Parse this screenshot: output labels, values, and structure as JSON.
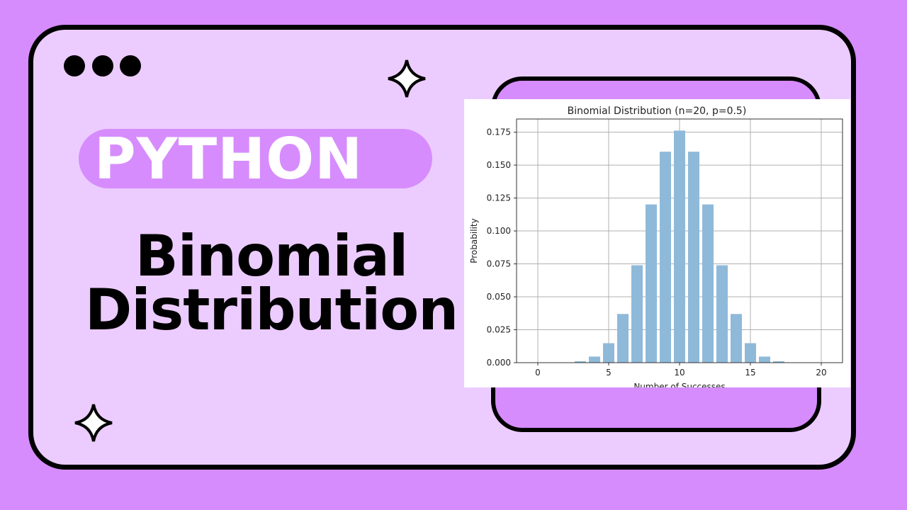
{
  "thumbnail": {
    "badge": "PYTHON",
    "title_line1": "Binomial",
    "title_line2": "Distribution",
    "colors": {
      "background": "#d68cfd",
      "card": "#ecccff",
      "bar": "#8fb9d9"
    }
  },
  "chart_data": {
    "type": "bar",
    "title": "Binomial Distribution (n=20, p=0.5)",
    "xlabel": "Number of Successes",
    "ylabel": "Probability",
    "x": [
      0,
      1,
      2,
      3,
      4,
      5,
      6,
      7,
      8,
      9,
      10,
      11,
      12,
      13,
      14,
      15,
      16,
      17,
      18,
      19,
      20
    ],
    "values": [
      1e-06,
      1.9e-05,
      0.000181,
      0.001087,
      0.004621,
      0.014786,
      0.036964,
      0.073929,
      0.120134,
      0.160179,
      0.176197,
      0.160179,
      0.120134,
      0.073929,
      0.036964,
      0.014786,
      0.004621,
      0.001087,
      0.000181,
      1.9e-05,
      1e-06
    ],
    "xticks": [
      "0",
      "5",
      "10",
      "15",
      "20"
    ],
    "yticks": [
      "0.000",
      "0.025",
      "0.050",
      "0.075",
      "0.100",
      "0.125",
      "0.150",
      "0.175"
    ],
    "xlim": [
      -1.5,
      21.5
    ],
    "ylim": [
      0,
      0.185
    ],
    "grid": true
  }
}
